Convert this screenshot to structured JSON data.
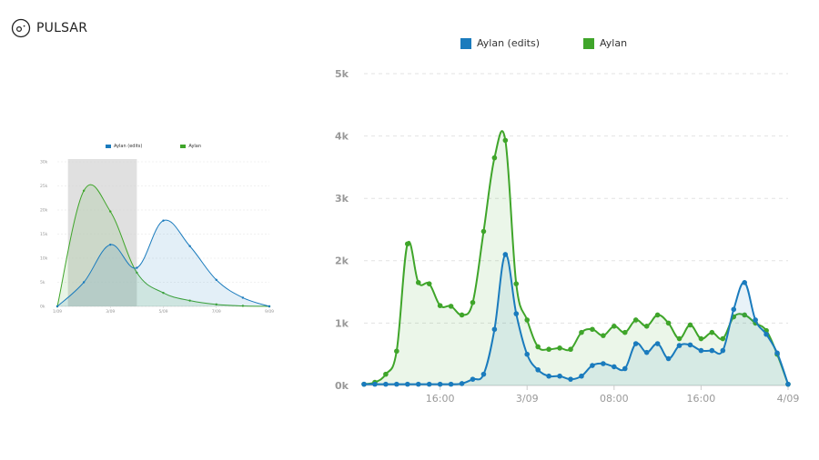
{
  "app": {
    "name": "PULSAR",
    "logo_icon": "pulsar-logo-icon"
  },
  "colors": {
    "edits": "#1a7bbd",
    "aylan": "#3fa52a",
    "grid": "#e3e3e3",
    "tick": "#999999",
    "brush": "#d0d0d0"
  },
  "chart_data": [
    {
      "id": "overview",
      "type": "area",
      "legend": [
        "Aylan (edits)",
        "Aylan"
      ],
      "legend_position": "top-center",
      "grid": true,
      "yticks": [
        "0k",
        "5k",
        "10k",
        "15k",
        "20k",
        "25k",
        "30k"
      ],
      "ylim": [
        0,
        30
      ],
      "xticks": [
        "1/09",
        "3/09",
        "5/09",
        "7/09",
        "9/09"
      ],
      "xlim": [
        1,
        9
      ],
      "selection": [
        1.4,
        4.0
      ],
      "series": [
        {
          "name": "Aylan (edits)",
          "x": [
            1,
            2,
            3,
            4,
            5,
            6,
            7,
            8,
            9
          ],
          "values": [
            0,
            5,
            12.8,
            8,
            17.8,
            12.5,
            5.5,
            1.8,
            0
          ]
        },
        {
          "name": "Aylan",
          "x": [
            1,
            2,
            3,
            4,
            5,
            6,
            7,
            8,
            9
          ],
          "values": [
            0,
            24,
            19.7,
            7,
            2.8,
            1.2,
            0.4,
            0.1,
            0
          ]
        }
      ]
    },
    {
      "id": "detail",
      "type": "area",
      "legend": [
        "Aylan (edits)",
        "Aylan"
      ],
      "legend_position": "top-center",
      "grid": true,
      "yticks": [
        "0k",
        "1k",
        "2k",
        "3k",
        "4k",
        "5k"
      ],
      "ylim": [
        0,
        5
      ],
      "xticks": [
        "16:00",
        "3/09",
        "08:00",
        "16:00",
        "4/09"
      ],
      "xtick_positions": [
        7,
        15,
        23,
        31,
        39
      ],
      "xlim": [
        0,
        39
      ],
      "series": [
        {
          "name": "Aylan (edits)",
          "x": [
            0,
            1,
            2,
            3,
            4,
            5,
            6,
            7,
            8,
            9,
            10,
            11,
            12,
            13,
            14,
            15,
            16,
            17,
            18,
            19,
            20,
            21,
            22,
            23,
            24,
            25,
            26,
            27,
            28,
            29,
            30,
            31,
            32,
            33,
            34,
            35,
            36,
            37,
            38,
            39
          ],
          "values": [
            0.02,
            0.02,
            0.02,
            0.02,
            0.02,
            0.02,
            0.02,
            0.02,
            0.02,
            0.03,
            0.1,
            0.18,
            0.9,
            2.1,
            1.15,
            0.5,
            0.25,
            0.15,
            0.15,
            0.1,
            0.15,
            0.32,
            0.35,
            0.3,
            0.27,
            0.67,
            0.53,
            0.67,
            0.43,
            0.64,
            0.65,
            0.56,
            0.56,
            0.56,
            1.22,
            1.65,
            1.05,
            0.82,
            0.52,
            0.02
          ]
        },
        {
          "name": "Aylan",
          "x": [
            0,
            1,
            2,
            3,
            4,
            5,
            6,
            7,
            8,
            9,
            10,
            11,
            12,
            13,
            14,
            15,
            16,
            17,
            18,
            19,
            20,
            21,
            22,
            23,
            24,
            25,
            26,
            27,
            28,
            29,
            30,
            31,
            32,
            33,
            34,
            35,
            36,
            37,
            38,
            39
          ],
          "values": [
            0.02,
            0.05,
            0.18,
            0.55,
            2.27,
            1.65,
            1.63,
            1.28,
            1.27,
            1.13,
            1.33,
            2.47,
            3.65,
            3.93,
            1.63,
            1.05,
            0.62,
            0.58,
            0.6,
            0.58,
            0.85,
            0.9,
            0.8,
            0.95,
            0.85,
            1.05,
            0.95,
            1.13,
            1.0,
            0.75,
            0.97,
            0.75,
            0.85,
            0.75,
            1.1,
            1.13,
            1.0,
            0.88,
            0.5,
            0.02
          ]
        }
      ]
    }
  ]
}
